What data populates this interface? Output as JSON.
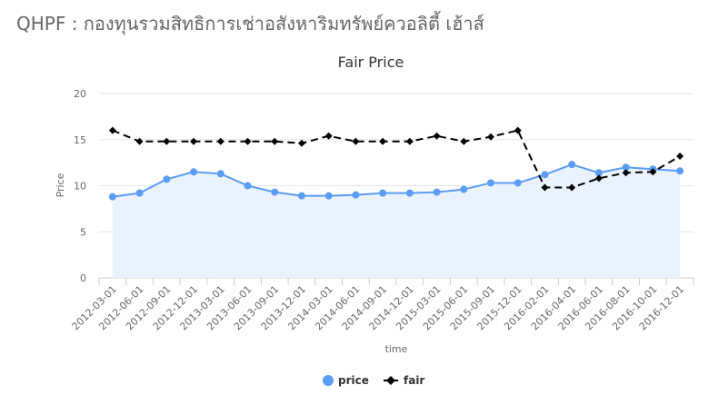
{
  "page": {
    "heading": "QHPF : กองทุนรวมสิทธิการเช่าอสังหาริมทรัพย์ควอลิตี้ เฮ้าส์"
  },
  "chart_data": {
    "type": "line",
    "title": "Fair Price",
    "xlabel": "time",
    "ylabel": "Price",
    "ylim": [
      0,
      20
    ],
    "yticks": [
      0,
      5,
      10,
      15,
      20
    ],
    "grid": true,
    "legend_position": "bottom-center",
    "categories": [
      "2012-03-01",
      "2012-06-01",
      "2012-09-01",
      "2012-12-01",
      "2013-03-01",
      "2013-06-01",
      "2013-09-01",
      "2013-12-01",
      "2014-03-01",
      "2014-06-01",
      "2014-09-01",
      "2014-12-01",
      "2015-03-01",
      "2015-06-01",
      "2015-09-01",
      "2015-12-01",
      "2016-02-01",
      "2016-04-01",
      "2016-06-01",
      "2016-08-01",
      "2016-10-01",
      "2016-12-01"
    ],
    "series": [
      {
        "name": "price",
        "style": "area",
        "color": "#5b9cf4",
        "fill": "#eaf2fd",
        "marker": "circle",
        "values": [
          8.8,
          9.2,
          10.7,
          11.5,
          11.3,
          10.0,
          9.3,
          8.9,
          8.9,
          9.0,
          9.2,
          9.2,
          9.3,
          9.6,
          10.3,
          10.3,
          11.2,
          12.3,
          11.4,
          12.0,
          11.8,
          11.6
        ]
      },
      {
        "name": "fair",
        "style": "dashed-line",
        "color": "#000000",
        "marker": "diamond",
        "values": [
          16.0,
          14.8,
          14.8,
          14.8,
          14.8,
          14.8,
          14.8,
          14.6,
          15.4,
          14.8,
          14.8,
          14.8,
          15.4,
          14.8,
          15.3,
          16.0,
          9.8,
          9.8,
          10.8,
          11.4,
          11.5,
          13.2
        ]
      }
    ]
  }
}
